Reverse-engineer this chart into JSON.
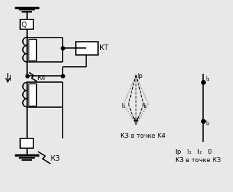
{
  "bg_color": "#e8e8e8",
  "line_color": "#000000",
  "figsize": [
    3.35,
    2.76
  ],
  "dpi": 100,
  "label_Q": "Q",
  "label_KT": "КТ",
  "label_K4": "К4",
  "label_KZ_bottom": "КЗ",
  "label_I": "I",
  "label_Ip": "Iр",
  "label_I1_vec": "I₁",
  "label_I2_vec": "I₂",
  "label_I1_line": "I₁",
  "label_I2_line": "I₂",
  "caption_k4": "КЗ в точке K4",
  "caption_kz": "КЗ в точке КЗ",
  "caption_scale": "Iр   I₁   I₂   0"
}
